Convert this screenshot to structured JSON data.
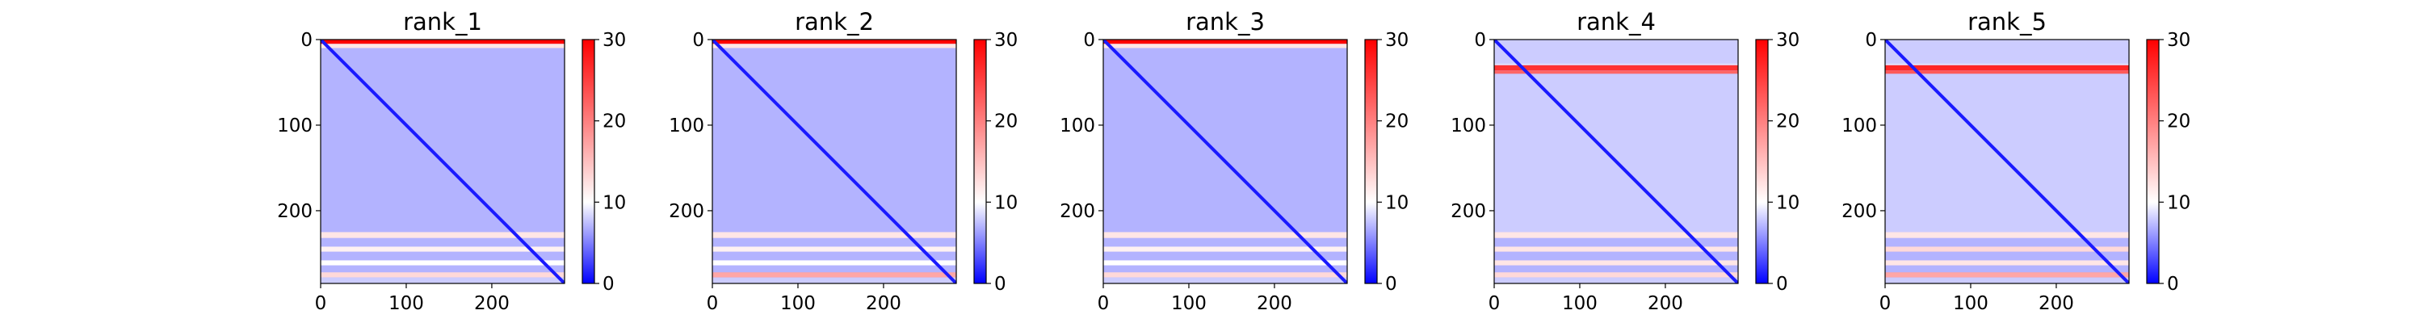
{
  "colors": {
    "low": "#0000ff",
    "mid": "#ffffff",
    "high": "#ff0000",
    "axis": "#000000",
    "background": "#ffffff"
  },
  "chart_data": [
    {
      "type": "heatmap",
      "title": "rank_1",
      "xlabel": "",
      "ylabel": "",
      "xlim": [
        0,
        285
      ],
      "ylim": [
        285,
        0
      ],
      "xticks": [
        0,
        100,
        200
      ],
      "yticks": [
        0,
        100,
        200
      ],
      "colorbar": {
        "min": 0,
        "max": 30,
        "ticks": [
          0,
          10,
          20,
          30
        ]
      },
      "size": 285,
      "row_profile": [
        {
          "row": 0,
          "value": 30
        },
        {
          "row": 5,
          "value": 12
        },
        {
          "row": 10,
          "value": 7
        },
        {
          "row": 225,
          "value": 12
        },
        {
          "row": 232,
          "value": 7
        },
        {
          "row": 242,
          "value": 11
        },
        {
          "row": 248,
          "value": 7
        },
        {
          "row": 258,
          "value": 10
        },
        {
          "row": 264,
          "value": 7
        },
        {
          "row": 272,
          "value": 13
        },
        {
          "row": 278,
          "value": 8
        }
      ]
    },
    {
      "type": "heatmap",
      "title": "rank_2",
      "xlabel": "",
      "ylabel": "",
      "xlim": [
        0,
        285
      ],
      "ylim": [
        285,
        0
      ],
      "xticks": [
        0,
        100,
        200
      ],
      "yticks": [
        0,
        100,
        200
      ],
      "colorbar": {
        "min": 0,
        "max": 30,
        "ticks": [
          0,
          10,
          20,
          30
        ]
      },
      "size": 285,
      "row_profile": [
        {
          "row": 0,
          "value": 30
        },
        {
          "row": 5,
          "value": 12
        },
        {
          "row": 10,
          "value": 7
        },
        {
          "row": 225,
          "value": 12
        },
        {
          "row": 232,
          "value": 7
        },
        {
          "row": 242,
          "value": 11
        },
        {
          "row": 248,
          "value": 7
        },
        {
          "row": 258,
          "value": 10
        },
        {
          "row": 264,
          "value": 7
        },
        {
          "row": 272,
          "value": 17
        },
        {
          "row": 278,
          "value": 8
        }
      ]
    },
    {
      "type": "heatmap",
      "title": "rank_3",
      "xlabel": "",
      "ylabel": "",
      "xlim": [
        0,
        285
      ],
      "ylim": [
        285,
        0
      ],
      "xticks": [
        0,
        100,
        200
      ],
      "yticks": [
        0,
        100,
        200
      ],
      "colorbar": {
        "min": 0,
        "max": 30,
        "ticks": [
          0,
          10,
          20,
          30
        ]
      },
      "size": 285,
      "row_profile": [
        {
          "row": 0,
          "value": 30
        },
        {
          "row": 5,
          "value": 12
        },
        {
          "row": 10,
          "value": 7
        },
        {
          "row": 225,
          "value": 12
        },
        {
          "row": 232,
          "value": 7
        },
        {
          "row": 242,
          "value": 11
        },
        {
          "row": 248,
          "value": 7
        },
        {
          "row": 258,
          "value": 10
        },
        {
          "row": 264,
          "value": 7
        },
        {
          "row": 272,
          "value": 13
        },
        {
          "row": 278,
          "value": 8
        }
      ]
    },
    {
      "type": "heatmap",
      "title": "rank_4",
      "xlabel": "",
      "ylabel": "",
      "xlim": [
        0,
        285
      ],
      "ylim": [
        285,
        0
      ],
      "xticks": [
        0,
        100,
        200
      ],
      "yticks": [
        0,
        100,
        200
      ],
      "colorbar": {
        "min": 0,
        "max": 30,
        "ticks": [
          0,
          10,
          20,
          30
        ]
      },
      "size": 285,
      "row_profile": [
        {
          "row": 0,
          "value": 8
        },
        {
          "row": 28,
          "value": 9
        },
        {
          "row": 30,
          "value": 26
        },
        {
          "row": 36,
          "value": 22
        },
        {
          "row": 40,
          "value": 8
        },
        {
          "row": 225,
          "value": 12
        },
        {
          "row": 232,
          "value": 7
        },
        {
          "row": 242,
          "value": 12
        },
        {
          "row": 248,
          "value": 7
        },
        {
          "row": 258,
          "value": 12
        },
        {
          "row": 264,
          "value": 7
        },
        {
          "row": 272,
          "value": 13
        },
        {
          "row": 278,
          "value": 8
        }
      ]
    },
    {
      "type": "heatmap",
      "title": "rank_5",
      "xlabel": "",
      "ylabel": "",
      "xlim": [
        0,
        285
      ],
      "ylim": [
        285,
        0
      ],
      "xticks": [
        0,
        100,
        200
      ],
      "yticks": [
        0,
        100,
        200
      ],
      "colorbar": {
        "min": 0,
        "max": 30,
        "ticks": [
          0,
          10,
          20,
          30
        ]
      },
      "size": 285,
      "row_profile": [
        {
          "row": 0,
          "value": 8
        },
        {
          "row": 28,
          "value": 9
        },
        {
          "row": 30,
          "value": 27
        },
        {
          "row": 36,
          "value": 23
        },
        {
          "row": 40,
          "value": 8
        },
        {
          "row": 225,
          "value": 12
        },
        {
          "row": 232,
          "value": 7
        },
        {
          "row": 242,
          "value": 13
        },
        {
          "row": 248,
          "value": 7
        },
        {
          "row": 258,
          "value": 12
        },
        {
          "row": 264,
          "value": 7
        },
        {
          "row": 272,
          "value": 17
        },
        {
          "row": 278,
          "value": 8
        }
      ]
    }
  ]
}
